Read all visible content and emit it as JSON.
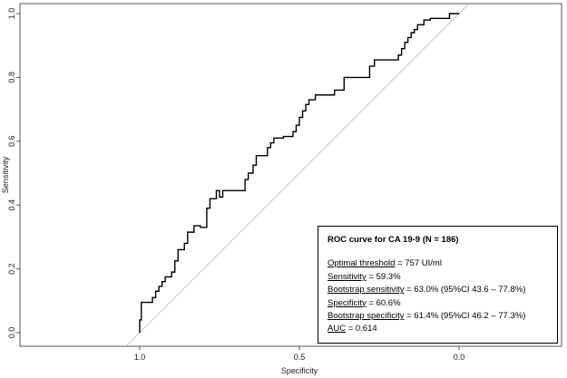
{
  "chart_data": {
    "type": "line",
    "xlabel": "Specificity",
    "ylabel": "Sensitivity",
    "xlim": [
      1.3,
      -0.3
    ],
    "ylim": [
      0,
      1.0
    ],
    "x_reversed": true,
    "x_ticks": [
      1.0,
      0.5,
      0.0
    ],
    "x_tick_labels": [
      "1.0",
      "0.5",
      "0.0"
    ],
    "y_ticks": [
      0.0,
      0.2,
      0.4,
      0.6,
      0.8,
      1.0
    ],
    "y_tick_labels": [
      "0.0",
      "0.2",
      "0.4",
      "0.6",
      "0.8",
      "1.0"
    ],
    "grid": false,
    "diagonal_reference": true,
    "series": [
      {
        "specificity": [
          1.0,
          1.0,
          0.995,
          0.995,
          0.96,
          0.96,
          0.95,
          0.95,
          0.94,
          0.94,
          0.93,
          0.93,
          0.92,
          0.92,
          0.9,
          0.9,
          0.89,
          0.89,
          0.88,
          0.88,
          0.86,
          0.86,
          0.85,
          0.85,
          0.83,
          0.83,
          0.81,
          0.81,
          0.79,
          0.79,
          0.78,
          0.78,
          0.76,
          0.76,
          0.75,
          0.75,
          0.74,
          0.74,
          0.67,
          0.67,
          0.66,
          0.66,
          0.645,
          0.645,
          0.635,
          0.635,
          0.6,
          0.6,
          0.59,
          0.59,
          0.58,
          0.58,
          0.55,
          0.55,
          0.52,
          0.52,
          0.51,
          0.51,
          0.5,
          0.5,
          0.49,
          0.49,
          0.48,
          0.48,
          0.47,
          0.47,
          0.45,
          0.45,
          0.39,
          0.39,
          0.36,
          0.36,
          0.28,
          0.28,
          0.27,
          0.27,
          0.265,
          0.265,
          0.19,
          0.19,
          0.18,
          0.18,
          0.17,
          0.17,
          0.16,
          0.16,
          0.15,
          0.15,
          0.14,
          0.14,
          0.13,
          0.13,
          0.11,
          0.11,
          0.09,
          0.09,
          0.03,
          0.03,
          0.0
        ],
        "sensitivity": [
          0.0,
          0.04,
          0.04,
          0.095,
          0.095,
          0.11,
          0.11,
          0.13,
          0.13,
          0.145,
          0.145,
          0.16,
          0.16,
          0.175,
          0.175,
          0.19,
          0.19,
          0.225,
          0.225,
          0.26,
          0.26,
          0.28,
          0.28,
          0.315,
          0.315,
          0.335,
          0.335,
          0.33,
          0.33,
          0.39,
          0.39,
          0.42,
          0.42,
          0.445,
          0.445,
          0.425,
          0.425,
          0.445,
          0.445,
          0.48,
          0.48,
          0.5,
          0.5,
          0.525,
          0.525,
          0.555,
          0.555,
          0.58,
          0.58,
          0.595,
          0.595,
          0.61,
          0.61,
          0.615,
          0.615,
          0.63,
          0.63,
          0.65,
          0.65,
          0.675,
          0.675,
          0.695,
          0.695,
          0.715,
          0.715,
          0.73,
          0.73,
          0.745,
          0.745,
          0.76,
          0.76,
          0.8,
          0.8,
          0.835,
          0.835,
          0.835,
          0.835,
          0.855,
          0.855,
          0.87,
          0.87,
          0.89,
          0.89,
          0.91,
          0.91,
          0.925,
          0.925,
          0.94,
          0.94,
          0.95,
          0.95,
          0.965,
          0.965,
          0.98,
          0.98,
          0.985,
          0.985,
          1.0,
          1.0
        ]
      }
    ],
    "legend": {
      "title": "ROC curve for CA 19-9 (N = 186)",
      "placement": "bottom-right",
      "lines": [
        {
          "label": "Optimal threshold",
          "value": " = 757 UI/ml"
        },
        {
          "label": "Sensitivity",
          "value": " = 59.3%"
        },
        {
          "label": "Bootstrap sensitivity",
          "value": " = 63.0% (95%CI 43.6 – 77.8%)"
        },
        {
          "label": "Specificity",
          "value": " = 60.6%"
        },
        {
          "label": "Bootstrap specificity",
          "value": " = 61.4% (95%CI 46.2 – 77.3%)"
        },
        {
          "label": "AUC",
          "value": " = 0.614"
        }
      ]
    }
  },
  "colors": {
    "curve": "#000000",
    "diagonal": "#bbbbbb",
    "axis": "#555555"
  }
}
